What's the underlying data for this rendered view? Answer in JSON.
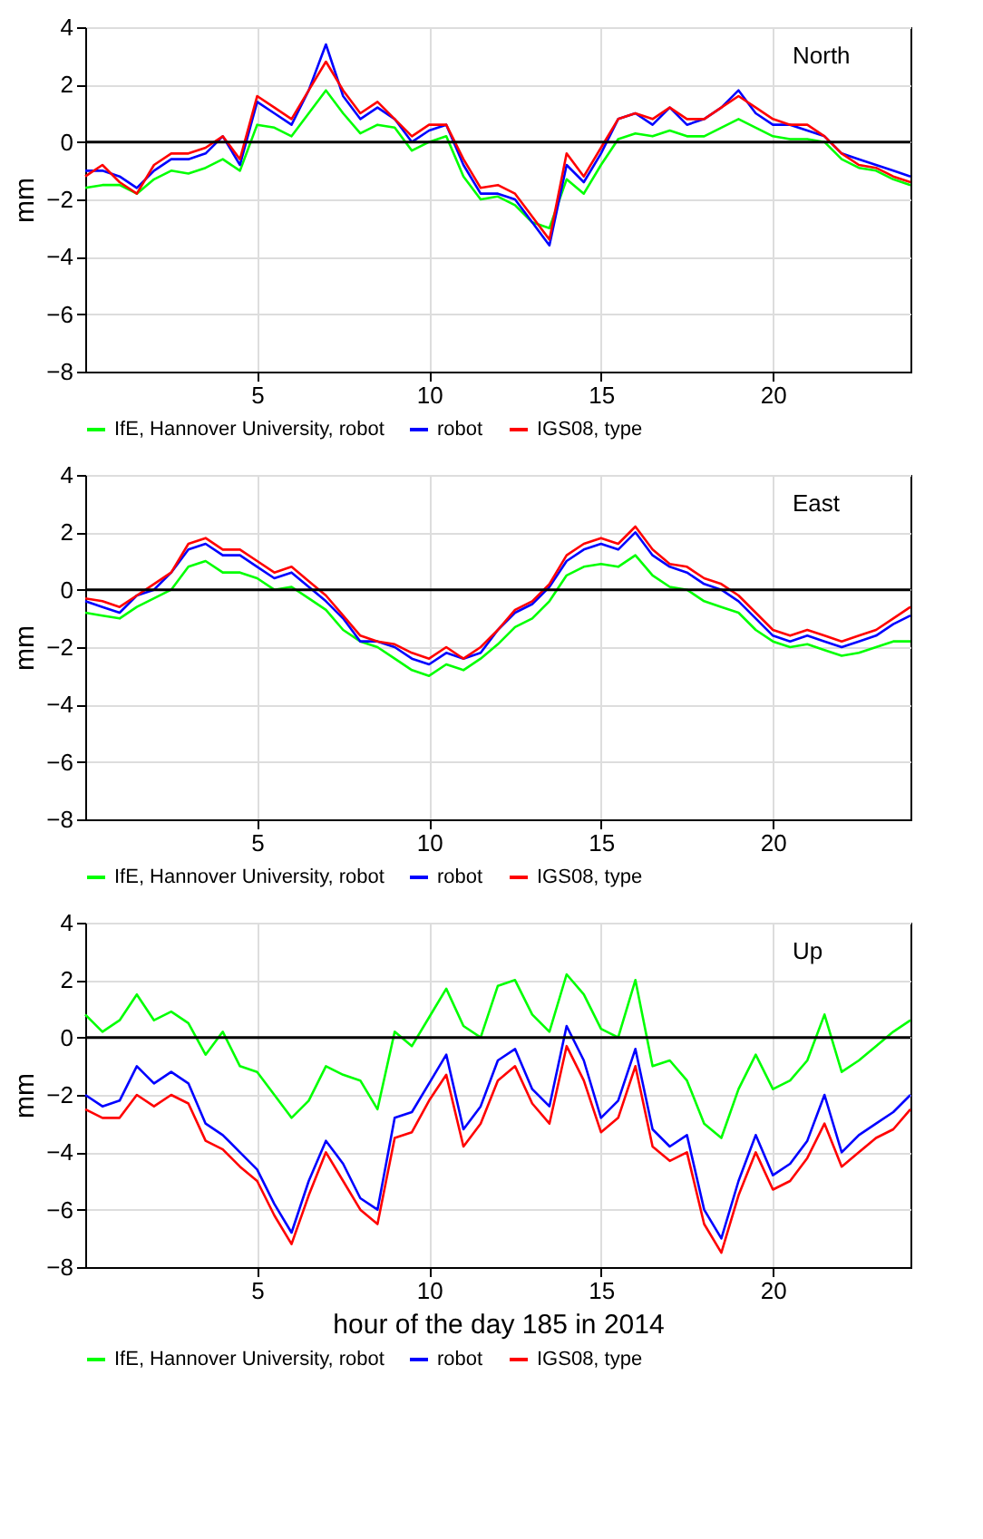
{
  "chart_data": [
    {
      "type": "line",
      "title": "North",
      "ylabel": "mm",
      "xlim": [
        0,
        24
      ],
      "ylim": [
        -8,
        4
      ],
      "xticks": [
        5,
        10,
        15,
        20
      ],
      "yticks": [
        -8,
        -6,
        -4,
        -2,
        0,
        2,
        4
      ],
      "grid": true,
      "legend": "bottom",
      "line_style": "solid",
      "ref_lines": [
        {
          "axis": "y",
          "value": 0,
          "color": "#000000"
        }
      ],
      "x": [
        0,
        0.5,
        1,
        1.5,
        2,
        2.5,
        3,
        3.5,
        4,
        4.5,
        5,
        5.5,
        6,
        6.5,
        7,
        7.5,
        8,
        8.5,
        9,
        9.5,
        10,
        10.5,
        11,
        11.5,
        12,
        12.5,
        13,
        13.5,
        14,
        14.5,
        15,
        15.5,
        16,
        16.5,
        17,
        17.5,
        18,
        18.5,
        19,
        19.5,
        20,
        20.5,
        21,
        21.5,
        22,
        22.5,
        23,
        23.5,
        24
      ],
      "series": [
        {
          "name": "IfE, Hannover University, robot",
          "color": "#00ff00",
          "values": [
            -1.6,
            -1.5,
            -1.5,
            -1.8,
            -1.3,
            -1.0,
            -1.1,
            -0.9,
            -0.6,
            -1.0,
            0.6,
            0.5,
            0.2,
            1.0,
            1.8,
            1.0,
            0.3,
            0.6,
            0.5,
            -0.3,
            0.0,
            0.2,
            -1.2,
            -2.0,
            -1.9,
            -2.2,
            -2.8,
            -3.0,
            -1.3,
            -1.8,
            -0.8,
            0.1,
            0.3,
            0.2,
            0.4,
            0.2,
            0.2,
            0.5,
            0.8,
            0.5,
            0.2,
            0.1,
            0.1,
            0.0,
            -0.6,
            -0.9,
            -1.0,
            -1.3,
            -1.5
          ]
        },
        {
          "name": "robot",
          "color": "#0000ff",
          "values": [
            -1.0,
            -1.0,
            -1.2,
            -1.6,
            -1.0,
            -0.6,
            -0.6,
            -0.4,
            0.2,
            -0.8,
            1.4,
            1.0,
            0.6,
            1.8,
            3.4,
            1.6,
            0.8,
            1.2,
            0.8,
            0.0,
            0.4,
            0.6,
            -0.8,
            -1.8,
            -1.8,
            -2.0,
            -2.8,
            -3.6,
            -0.8,
            -1.4,
            -0.4,
            0.8,
            1.0,
            0.6,
            1.2,
            0.6,
            0.8,
            1.2,
            1.8,
            1.0,
            0.6,
            0.6,
            0.4,
            0.2,
            -0.4,
            -0.6,
            -0.8,
            -1.0,
            -1.2
          ]
        },
        {
          "name": "IGS08, type",
          "color": "#ff0000",
          "values": [
            -1.2,
            -0.8,
            -1.4,
            -1.8,
            -0.8,
            -0.4,
            -0.4,
            -0.2,
            0.2,
            -0.6,
            1.6,
            1.2,
            0.8,
            1.8,
            2.8,
            1.8,
            1.0,
            1.4,
            0.8,
            0.2,
            0.6,
            0.6,
            -0.6,
            -1.6,
            -1.5,
            -1.8,
            -2.6,
            -3.4,
            -0.4,
            -1.2,
            -0.2,
            0.8,
            1.0,
            0.8,
            1.2,
            0.8,
            0.8,
            1.2,
            1.6,
            1.2,
            0.8,
            0.6,
            0.6,
            0.2,
            -0.4,
            -0.8,
            -0.9,
            -1.2,
            -1.4
          ]
        }
      ]
    },
    {
      "type": "line",
      "title": "East",
      "ylabel": "mm",
      "xlim": [
        0,
        24
      ],
      "ylim": [
        -8,
        4
      ],
      "xticks": [
        5,
        10,
        15,
        20
      ],
      "yticks": [
        -8,
        -6,
        -4,
        -2,
        0,
        2,
        4
      ],
      "grid": true,
      "legend": "bottom",
      "line_style": "solid",
      "ref_lines": [
        {
          "axis": "y",
          "value": 0,
          "color": "#000000"
        }
      ],
      "x": [
        0,
        0.5,
        1,
        1.5,
        2,
        2.5,
        3,
        3.5,
        4,
        4.5,
        5,
        5.5,
        6,
        6.5,
        7,
        7.5,
        8,
        8.5,
        9,
        9.5,
        10,
        10.5,
        11,
        11.5,
        12,
        12.5,
        13,
        13.5,
        14,
        14.5,
        15,
        15.5,
        16,
        16.5,
        17,
        17.5,
        18,
        18.5,
        19,
        19.5,
        20,
        20.5,
        21,
        21.5,
        22,
        22.5,
        23,
        23.5,
        24
      ],
      "series": [
        {
          "name": "IfE, Hannover University, robot",
          "color": "#00ff00",
          "values": [
            -0.8,
            -0.9,
            -1.0,
            -0.6,
            -0.3,
            0.0,
            0.8,
            1.0,
            0.6,
            0.6,
            0.4,
            0.0,
            0.1,
            -0.3,
            -0.7,
            -1.4,
            -1.8,
            -2.0,
            -2.4,
            -2.8,
            -3.0,
            -2.6,
            -2.8,
            -2.4,
            -1.9,
            -1.3,
            -1.0,
            -0.4,
            0.5,
            0.8,
            0.9,
            0.8,
            1.2,
            0.5,
            0.1,
            0.0,
            -0.4,
            -0.6,
            -0.8,
            -1.4,
            -1.8,
            -2.0,
            -1.9,
            -2.1,
            -2.3,
            -2.2,
            -2.0,
            -1.8,
            -1.8
          ]
        },
        {
          "name": "robot",
          "color": "#0000ff",
          "values": [
            -0.4,
            -0.6,
            -0.8,
            -0.2,
            0.0,
            0.6,
            1.4,
            1.6,
            1.2,
            1.2,
            0.8,
            0.4,
            0.6,
            0.1,
            -0.4,
            -1.0,
            -1.8,
            -1.8,
            -2.0,
            -2.4,
            -2.6,
            -2.2,
            -2.4,
            -2.2,
            -1.4,
            -0.8,
            -0.5,
            0.1,
            1.0,
            1.4,
            1.6,
            1.4,
            2.0,
            1.2,
            0.8,
            0.6,
            0.2,
            0.0,
            -0.4,
            -1.0,
            -1.6,
            -1.8,
            -1.6,
            -1.8,
            -2.0,
            -1.8,
            -1.6,
            -1.2,
            -0.9
          ]
        },
        {
          "name": "IGS08, type",
          "color": "#ff0000",
          "values": [
            -0.3,
            -0.4,
            -0.6,
            -0.2,
            0.2,
            0.6,
            1.6,
            1.8,
            1.4,
            1.4,
            1.0,
            0.6,
            0.8,
            0.3,
            -0.2,
            -0.9,
            -1.6,
            -1.8,
            -1.9,
            -2.2,
            -2.4,
            -2.0,
            -2.4,
            -2.0,
            -1.4,
            -0.7,
            -0.4,
            0.2,
            1.2,
            1.6,
            1.8,
            1.6,
            2.2,
            1.4,
            0.9,
            0.8,
            0.4,
            0.2,
            -0.2,
            -0.8,
            -1.4,
            -1.6,
            -1.4,
            -1.6,
            -1.8,
            -1.6,
            -1.4,
            -1.0,
            -0.6
          ]
        }
      ]
    },
    {
      "type": "line",
      "title": "Up",
      "xlabel": "hour of the day 185 in 2014",
      "ylabel": "mm",
      "xlim": [
        0,
        24
      ],
      "ylim": [
        -8,
        4
      ],
      "xticks": [
        5,
        10,
        15,
        20
      ],
      "yticks": [
        -8,
        -6,
        -4,
        -2,
        0,
        2,
        4
      ],
      "grid": true,
      "legend": "bottom",
      "line_style": "solid",
      "ref_lines": [
        {
          "axis": "y",
          "value": 0,
          "color": "#000000"
        }
      ],
      "x": [
        0,
        0.5,
        1,
        1.5,
        2,
        2.5,
        3,
        3.5,
        4,
        4.5,
        5,
        5.5,
        6,
        6.5,
        7,
        7.5,
        8,
        8.5,
        9,
        9.5,
        10,
        10.5,
        11,
        11.5,
        12,
        12.5,
        13,
        13.5,
        14,
        14.5,
        15,
        15.5,
        16,
        16.5,
        17,
        17.5,
        18,
        18.5,
        19,
        19.5,
        20,
        20.5,
        21,
        21.5,
        22,
        22.5,
        23,
        23.5,
        24
      ],
      "series": [
        {
          "name": "IfE, Hannover University, robot",
          "color": "#00ff00",
          "values": [
            0.8,
            0.2,
            0.6,
            1.5,
            0.6,
            0.9,
            0.5,
            -0.6,
            0.2,
            -1.0,
            -1.2,
            -2.0,
            -2.8,
            -2.2,
            -1.0,
            -1.3,
            -1.5,
            -2.5,
            0.2,
            -0.3,
            0.7,
            1.7,
            0.4,
            0.0,
            1.8,
            2.0,
            0.8,
            0.2,
            2.2,
            1.5,
            0.3,
            0.0,
            2.0,
            -1.0,
            -0.8,
            -1.5,
            -3.0,
            -3.5,
            -1.8,
            -0.6,
            -1.8,
            -1.5,
            -0.8,
            0.8,
            -1.2,
            -0.8,
            -0.3,
            0.2,
            0.6
          ]
        },
        {
          "name": "robot",
          "color": "#0000ff",
          "values": [
            -2.0,
            -2.4,
            -2.2,
            -1.0,
            -1.6,
            -1.2,
            -1.6,
            -3.0,
            -3.4,
            -4.0,
            -4.6,
            -5.8,
            -6.8,
            -5.0,
            -3.6,
            -4.4,
            -5.6,
            -6.0,
            -2.8,
            -2.6,
            -1.6,
            -0.6,
            -3.2,
            -2.4,
            -0.8,
            -0.4,
            -1.8,
            -2.4,
            0.4,
            -0.8,
            -2.8,
            -2.2,
            -0.4,
            -3.2,
            -3.8,
            -3.4,
            -6.0,
            -7.0,
            -5.0,
            -3.4,
            -4.8,
            -4.4,
            -3.6,
            -2.0,
            -4.0,
            -3.4,
            -3.0,
            -2.6,
            -2.0
          ]
        },
        {
          "name": "IGS08, type",
          "color": "#ff0000",
          "values": [
            -2.5,
            -2.8,
            -2.8,
            -2.0,
            -2.4,
            -2.0,
            -2.3,
            -3.6,
            -3.9,
            -4.5,
            -5.0,
            -6.2,
            -7.2,
            -5.5,
            -4.0,
            -5.0,
            -6.0,
            -6.5,
            -3.5,
            -3.3,
            -2.2,
            -1.3,
            -3.8,
            -3.0,
            -1.5,
            -1.0,
            -2.3,
            -3.0,
            -0.3,
            -1.5,
            -3.3,
            -2.8,
            -1.0,
            -3.8,
            -4.3,
            -4.0,
            -6.5,
            -7.5,
            -5.5,
            -4.0,
            -5.3,
            -5.0,
            -4.2,
            -3.0,
            -4.5,
            -4.0,
            -3.5,
            -3.2,
            -2.5
          ]
        }
      ]
    }
  ]
}
